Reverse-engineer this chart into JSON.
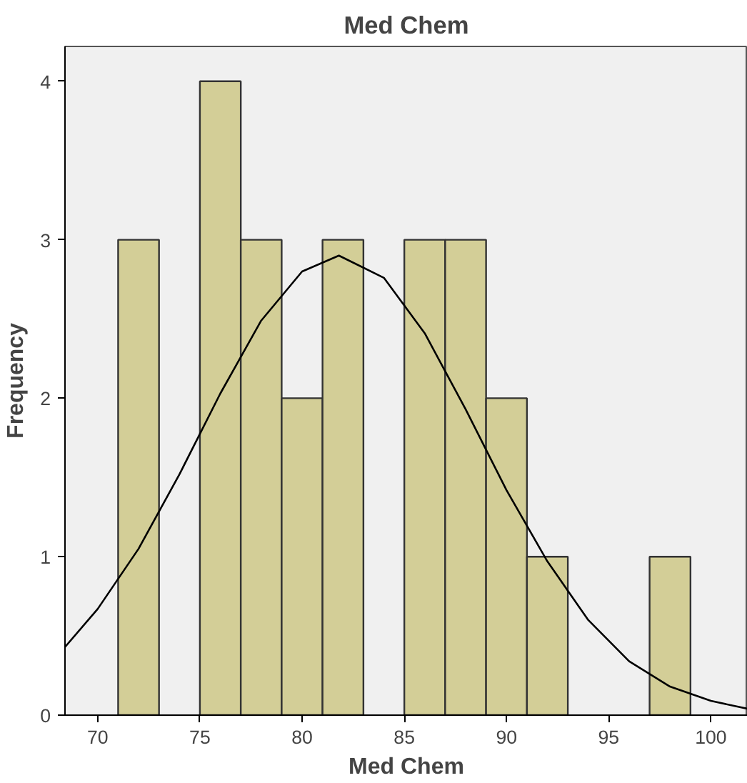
{
  "chart_data": {
    "type": "histogram",
    "title": "Med Chem",
    "xlabel": "Med Chem",
    "ylabel": "Frequency",
    "bins": [
      71,
      73,
      75,
      77,
      79,
      81,
      83,
      85,
      87,
      89,
      91,
      93,
      95,
      97,
      99
    ],
    "values": [
      3,
      0,
      4,
      3,
      2,
      3,
      0,
      3,
      3,
      2,
      1,
      0,
      0,
      1
    ],
    "color": "#d3ce97",
    "series": [
      {
        "type": "line",
        "color": "#000000",
        "x": [
          68.4,
          70,
          72,
          74,
          76,
          78,
          80,
          81.8,
          84,
          86,
          88,
          90,
          92,
          94,
          96,
          98,
          100,
          101.8
        ],
        "values": [
          0.43,
          0.67,
          1.05,
          1.52,
          2.03,
          2.49,
          2.8,
          2.9,
          2.76,
          2.41,
          1.93,
          1.42,
          0.97,
          0.6,
          0.34,
          0.18,
          0.09,
          0.04
        ]
      }
    ],
    "xlim": [
      68.4,
      101.8
    ],
    "ylim": [
      0,
      4.22
    ],
    "xticks": [
      70,
      75,
      80,
      85,
      90,
      95,
      100
    ],
    "yticks": [
      0,
      1,
      2,
      3,
      4
    ],
    "grid": false
  }
}
